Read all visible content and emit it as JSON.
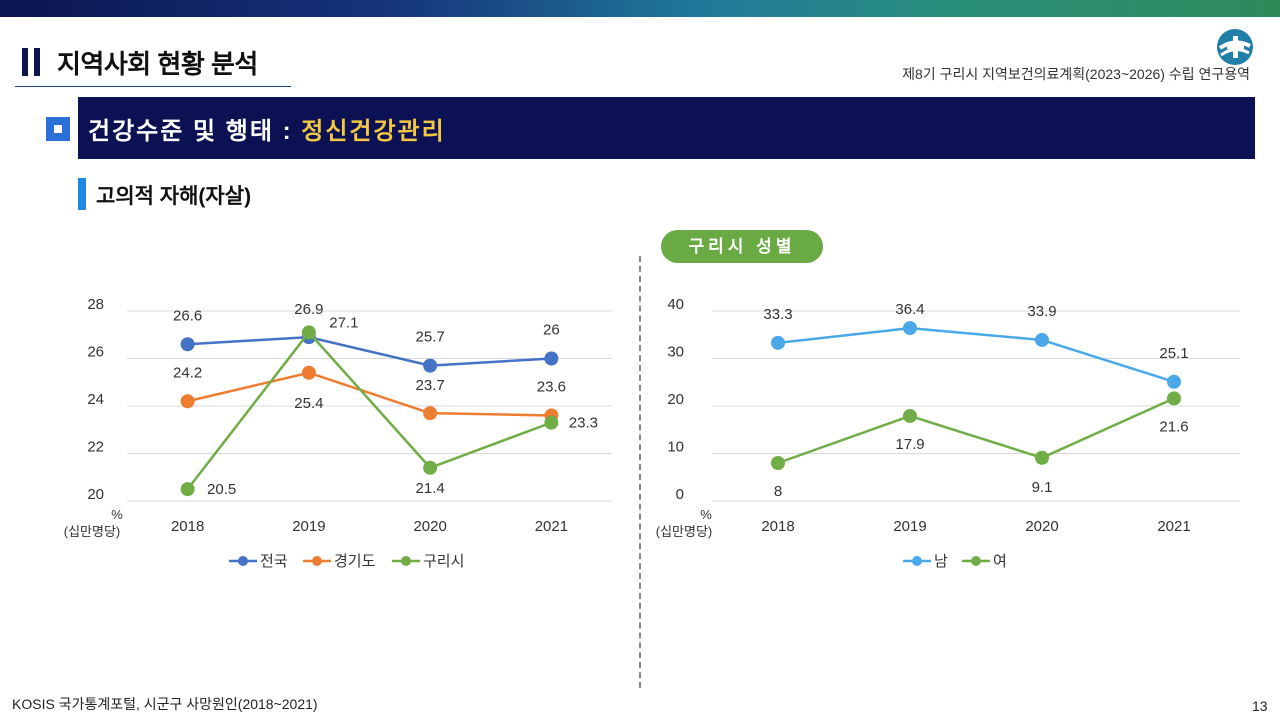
{
  "header": {
    "page_title": "지역사회 현황 분석",
    "report_title": "제8기 구리시 지역보건의료계획(2023~2026) 수립 연구용역"
  },
  "banner": {
    "prefix": "건강수준 및 행태 : ",
    "highlight": "정신건강관리"
  },
  "section": {
    "title": "고의적 자해(자살)"
  },
  "right_tag": "구리시 성별",
  "footer": {
    "source": "KOSIS 국가통계포털, 시군구 사망원인(2018~2021)",
    "page_number": "13"
  },
  "colors": {
    "banner_bg": "#0b1152",
    "highlight": "#f5c842",
    "national": "#4472c4",
    "gyeonggi": "#ed7d31",
    "guri": "#70ad47",
    "male": "#4aa8e8",
    "female": "#70ad47"
  },
  "chart_data": [
    {
      "type": "line",
      "categories": [
        "2018",
        "2019",
        "2020",
        "2021"
      ],
      "series": [
        {
          "name": "전국",
          "values": [
            26.6,
            26.9,
            25.7,
            26
          ],
          "color": "#4472c4"
        },
        {
          "name": "경기도",
          "values": [
            24.2,
            25.4,
            23.7,
            23.6
          ],
          "color": "#ed7d31"
        },
        {
          "name": "구리시",
          "values": [
            20.5,
            27.1,
            21.4,
            23.3
          ],
          "color": "#70ad47"
        }
      ],
      "ylim": [
        20,
        28
      ],
      "yticks": [
        "20",
        "22",
        "24",
        "26",
        "28"
      ],
      "yunit": "%",
      "yunit_note": "(십만명당)",
      "grid": true,
      "legend": "bottom"
    },
    {
      "type": "line",
      "categories": [
        "2018",
        "2019",
        "2020",
        "2021"
      ],
      "series": [
        {
          "name": "남",
          "values": [
            33.3,
            36.4,
            33.9,
            25.1
          ],
          "color": "#4aa8e8"
        },
        {
          "name": "여",
          "values": [
            8,
            17.9,
            9.1,
            21.6
          ],
          "color": "#70ad47"
        }
      ],
      "ylim": [
        0,
        40
      ],
      "yticks": [
        "0",
        "10",
        "20",
        "30",
        "40"
      ],
      "yunit": "%",
      "yunit_note": "(십만명당)",
      "grid": true,
      "legend": "bottom"
    }
  ]
}
